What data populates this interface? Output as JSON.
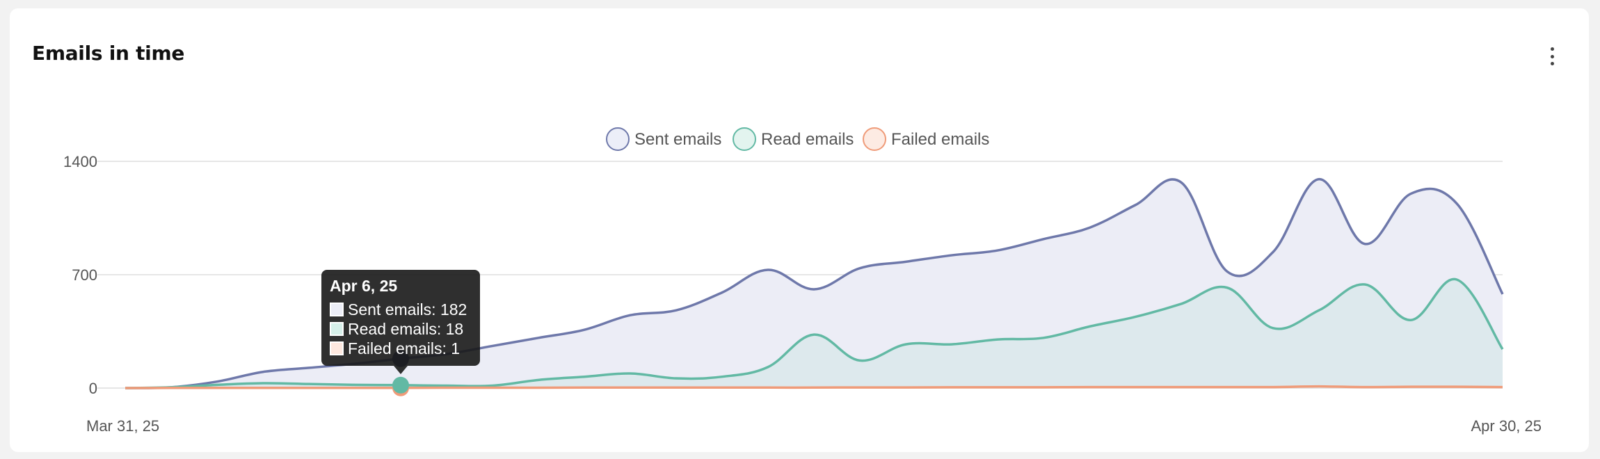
{
  "card": {
    "title": "Emails in time"
  },
  "menu": {
    "icon": "more-vertical-icon"
  },
  "colors": {
    "sent": "#6e78aa",
    "sent_fill": "#ecedf6",
    "read": "#62b9a4",
    "read_fill": "#dde9ed",
    "failed": "#ef9b79"
  },
  "chart_data": {
    "type": "area",
    "x_start_label": "Mar 31, 25",
    "x_end_label": "Apr 30, 25",
    "ylim": [
      0,
      1400
    ],
    "yticks": [
      0,
      700,
      1400
    ],
    "grid": true,
    "legend": "top-center",
    "series": [
      {
        "name": "Sent emails",
        "key": "sent",
        "values": [
          0,
          5,
          40,
          100,
          125,
          150,
          182,
          210,
          260,
          310,
          360,
          450,
          480,
          590,
          730,
          610,
          740,
          780,
          820,
          850,
          920,
          990,
          1130,
          1270,
          720,
          840,
          1290,
          890,
          1200,
          1140,
          580
        ]
      },
      {
        "name": "Read emails",
        "key": "read",
        "values": [
          0,
          5,
          20,
          30,
          25,
          20,
          18,
          15,
          15,
          50,
          70,
          90,
          60,
          70,
          130,
          330,
          170,
          270,
          270,
          300,
          310,
          380,
          440,
          520,
          620,
          370,
          480,
          640,
          420,
          670,
          240
        ]
      },
      {
        "name": "Failed emails",
        "key": "failed",
        "values": [
          0,
          1,
          1,
          1,
          1,
          1,
          1,
          2,
          2,
          2,
          3,
          3,
          3,
          3,
          3,
          3,
          4,
          4,
          5,
          5,
          5,
          6,
          6,
          6,
          6,
          6,
          10,
          6,
          8,
          8,
          6
        ]
      }
    ],
    "tooltip": {
      "date": "Apr 6, 25",
      "rows": [
        {
          "label": "Sent emails: 182",
          "key": "sent"
        },
        {
          "label": "Read emails: 18",
          "key": "read"
        },
        {
          "label": "Failed emails: 1",
          "key": "failed"
        }
      ],
      "index": 6
    }
  }
}
